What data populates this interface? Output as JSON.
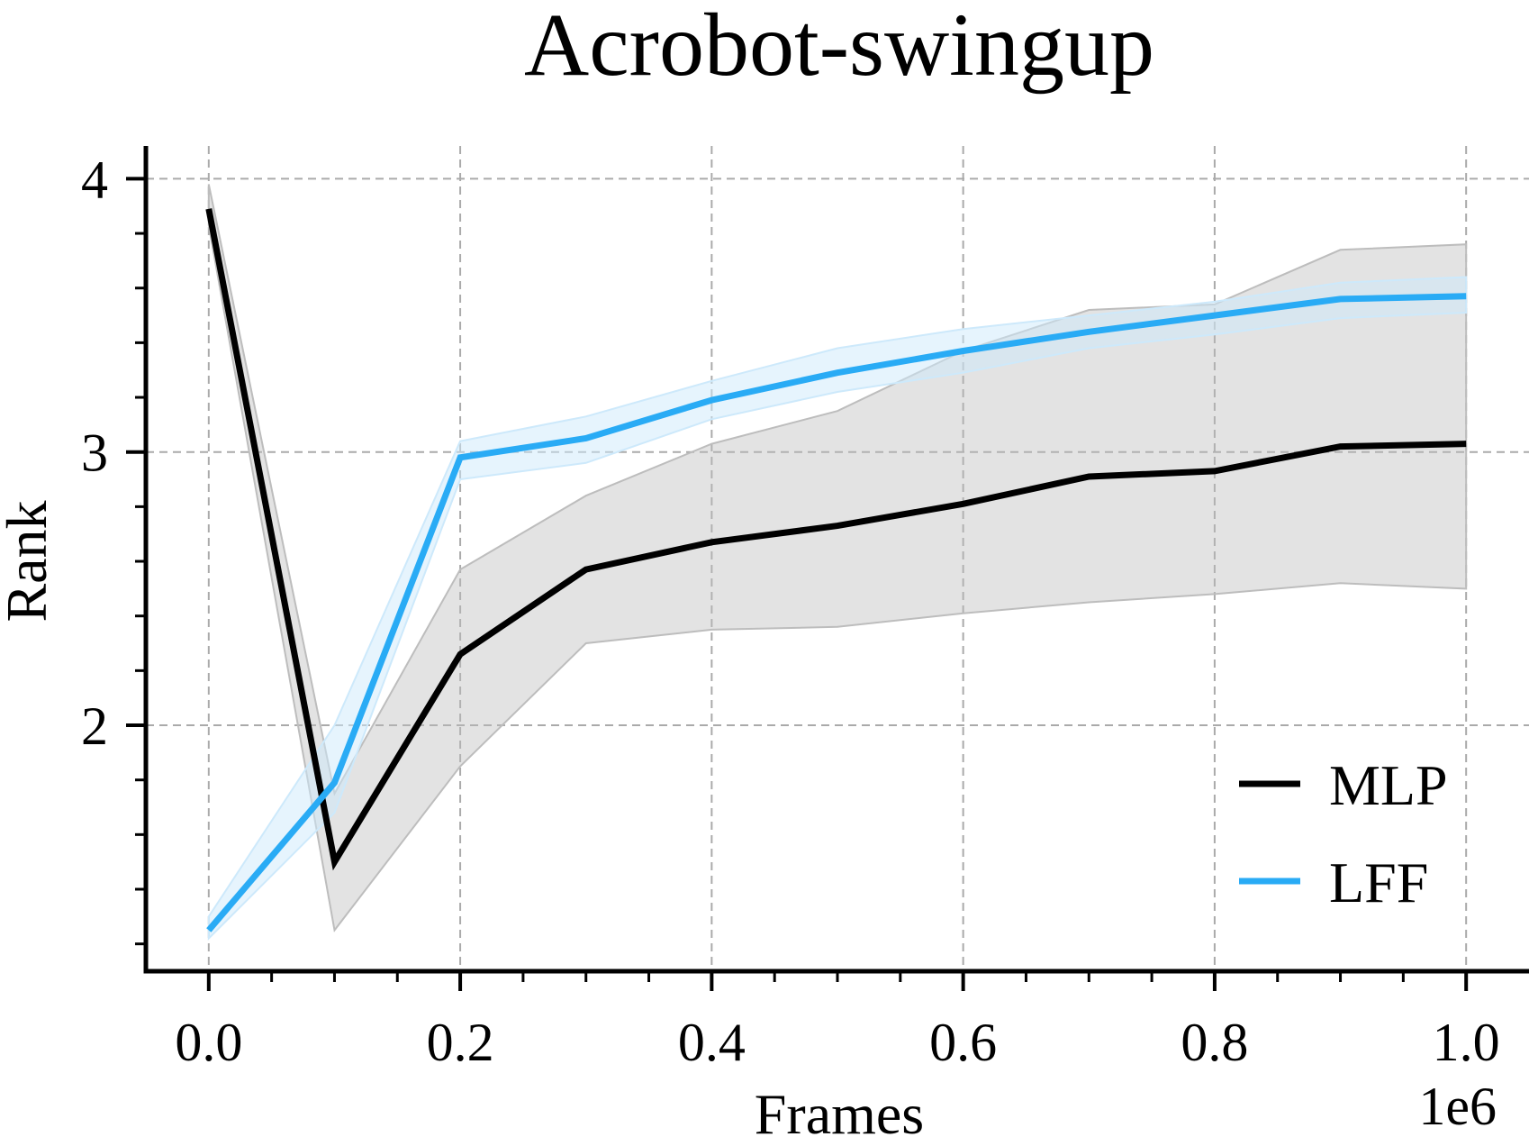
{
  "chart_data": {
    "type": "line",
    "title": "Acrobot-swingup",
    "xlabel": "Frames",
    "ylabel": "Rank",
    "x_offset_label": "1e6",
    "xlim": [
      -0.05,
      1.05
    ],
    "ylim": [
      1.1,
      4.12
    ],
    "x_ticks": [
      0.0,
      0.2,
      0.4,
      0.6,
      0.8,
      1.0
    ],
    "x_tick_labels": [
      "0.0",
      "0.2",
      "0.4",
      "0.6",
      "0.8",
      "1.0"
    ],
    "y_ticks": [
      2,
      3,
      4
    ],
    "y_tick_labels": [
      "2",
      "3",
      "4"
    ],
    "grid": true,
    "legend_position": "lower-right",
    "x": [
      0.0,
      0.1,
      0.2,
      0.3,
      0.4,
      0.5,
      0.6,
      0.7,
      0.8,
      0.9,
      1.0
    ],
    "series": [
      {
        "name": "MLP",
        "color": "#000000",
        "band_color": "#bdbdbd",
        "values": [
          3.89,
          1.5,
          2.26,
          2.57,
          2.67,
          2.73,
          2.81,
          2.91,
          2.93,
          3.02,
          3.03
        ],
        "lower": [
          3.83,
          1.25,
          1.85,
          2.3,
          2.35,
          2.36,
          2.41,
          2.45,
          2.48,
          2.52,
          2.5
        ],
        "upper": [
          3.98,
          1.75,
          2.57,
          2.84,
          3.03,
          3.15,
          3.37,
          3.52,
          3.54,
          3.74,
          3.76
        ]
      },
      {
        "name": "LFF",
        "color": "#29abf5",
        "band_color": "#cde9fb",
        "values": [
          1.25,
          1.79,
          2.98,
          3.05,
          3.19,
          3.29,
          3.37,
          3.44,
          3.5,
          3.56,
          3.57
        ],
        "lower": [
          1.22,
          1.68,
          2.9,
          2.96,
          3.12,
          3.22,
          3.29,
          3.38,
          3.43,
          3.49,
          3.51
        ],
        "upper": [
          1.3,
          2.0,
          3.04,
          3.13,
          3.26,
          3.38,
          3.45,
          3.5,
          3.55,
          3.62,
          3.64
        ]
      }
    ]
  }
}
